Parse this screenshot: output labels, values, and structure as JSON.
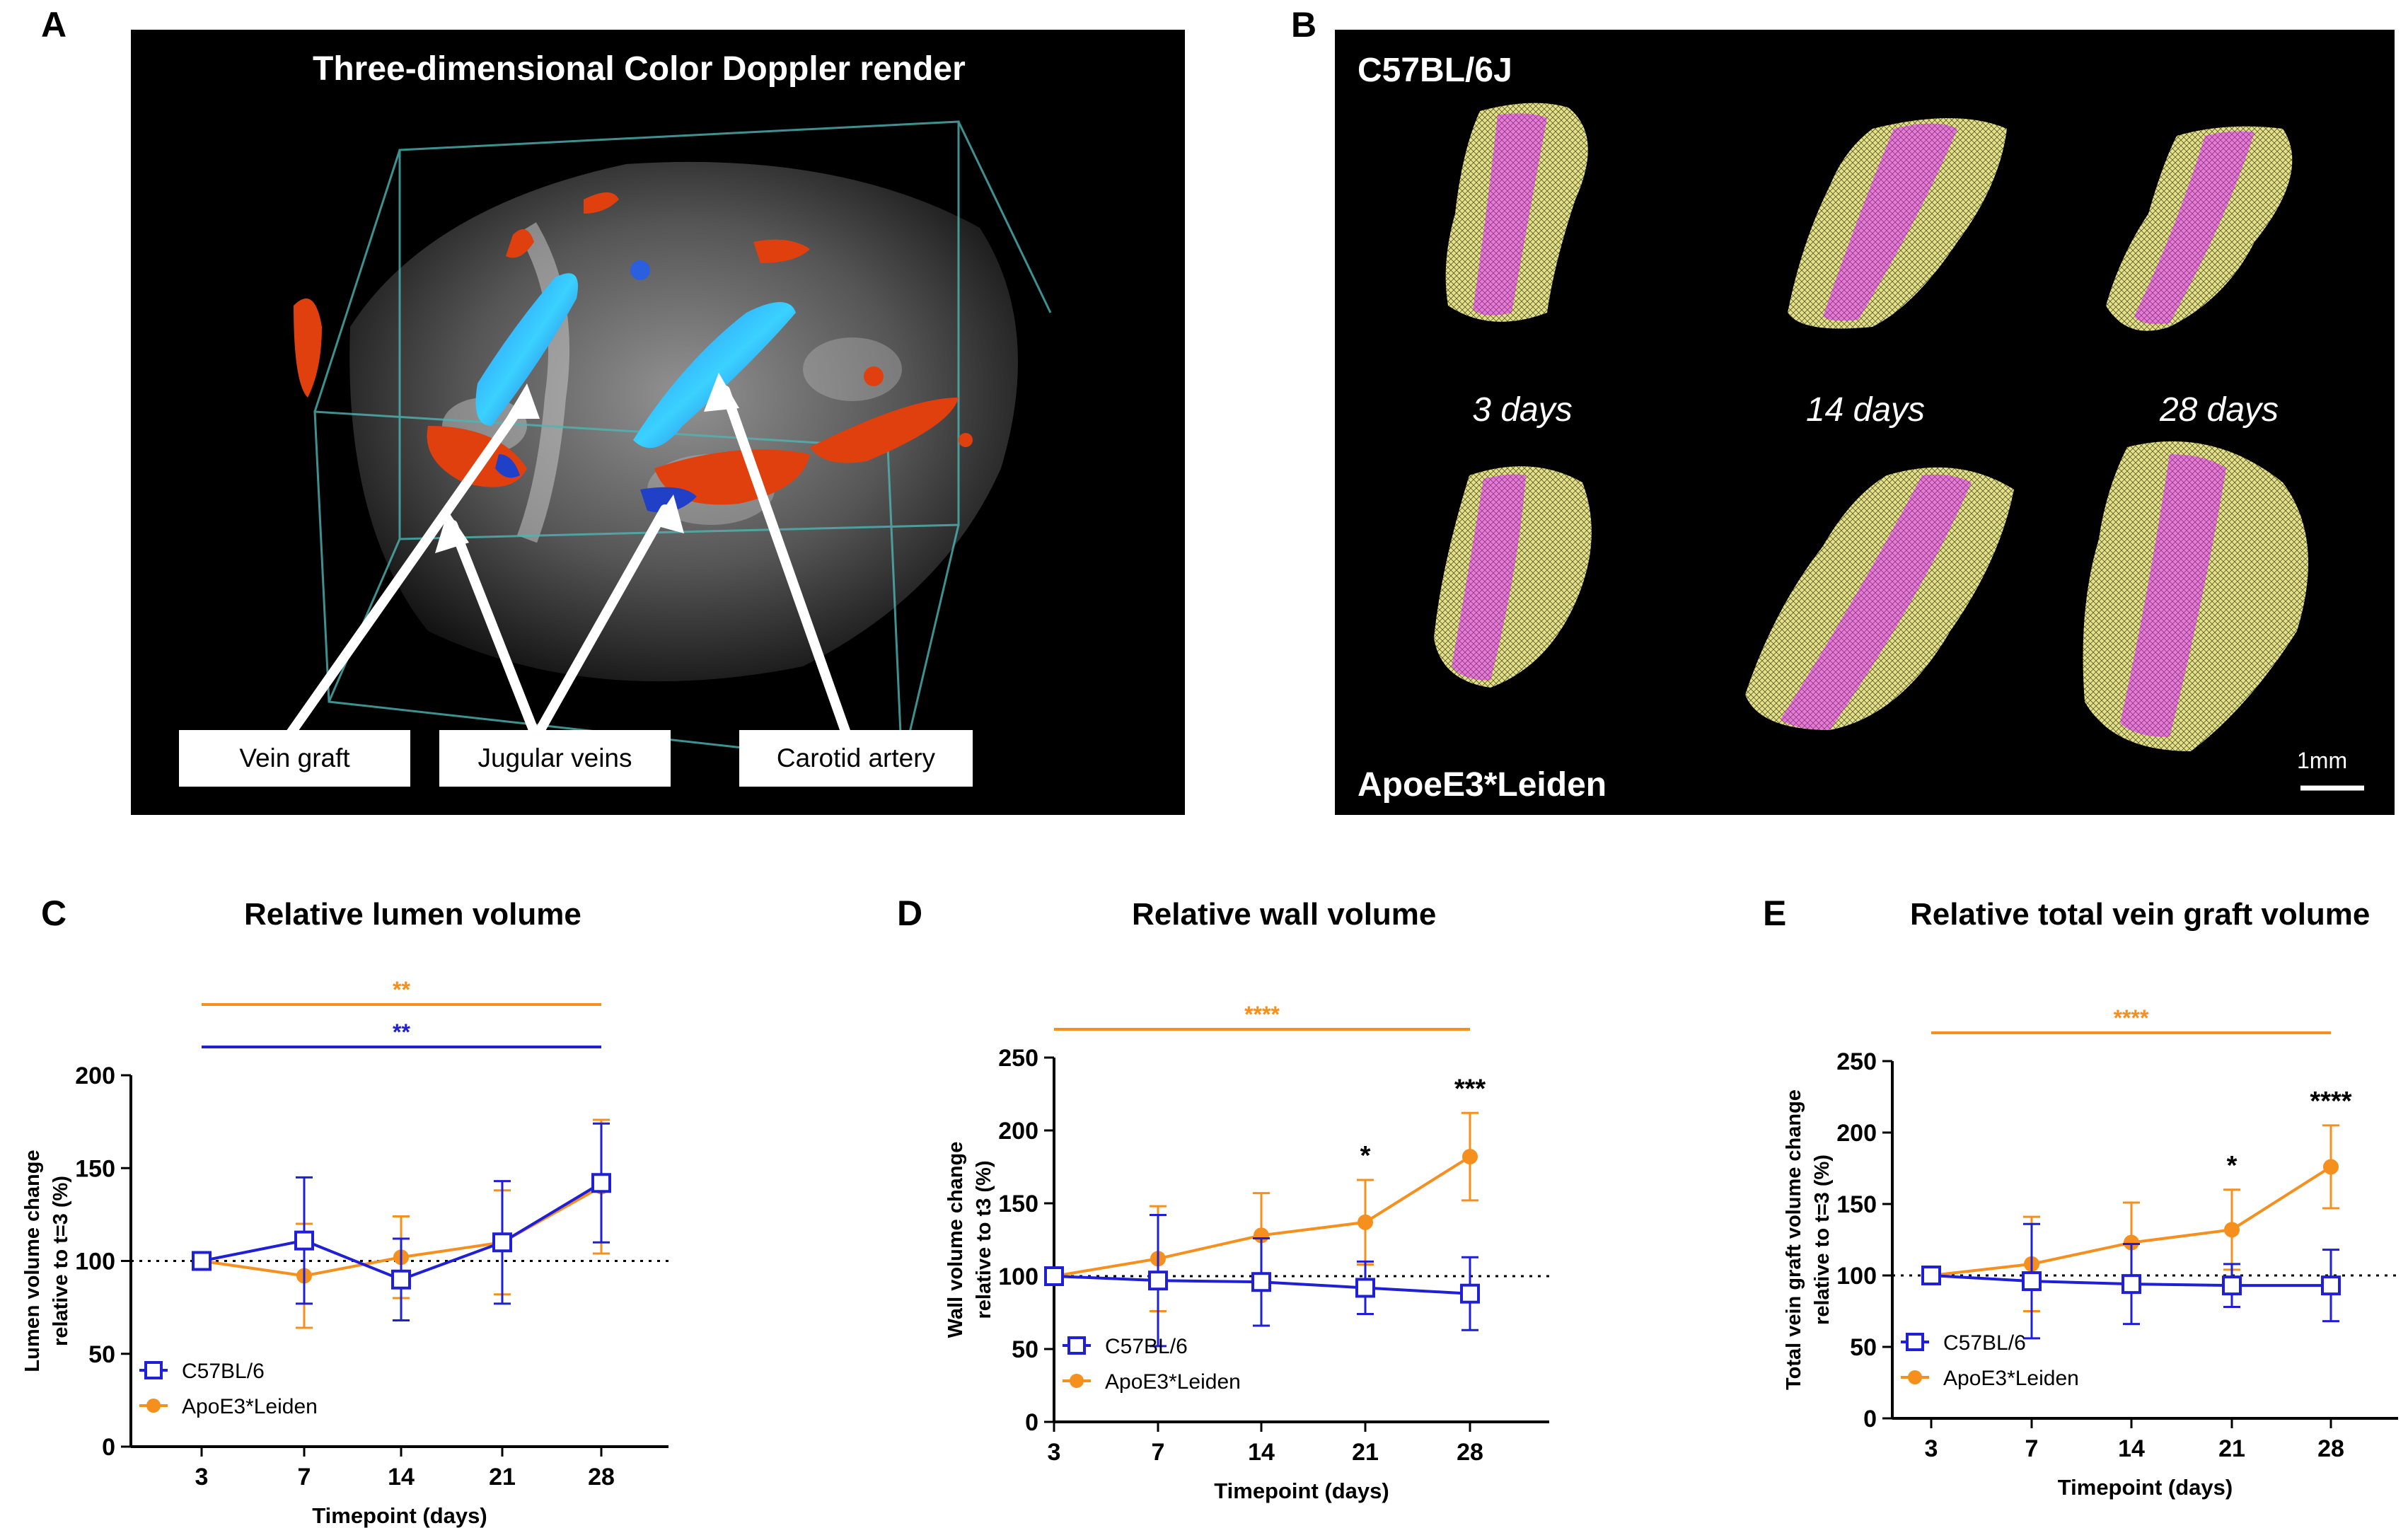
{
  "panel_a": {
    "label": "A",
    "title": "Three-dimensional Color Doppler render",
    "callouts": [
      "Vein graft",
      "Jugular veins",
      "Carotid artery"
    ]
  },
  "panel_b": {
    "label": "B",
    "strain_top": "C57BL/6J",
    "strain_bottom": "ApoeE3*Leiden",
    "days": [
      "3 days",
      "14 days",
      "28 days"
    ],
    "scale": "1mm"
  },
  "colors": {
    "c57": "#1f1fd6",
    "apoe": "#f5901e"
  },
  "chart_data": [
    {
      "panel": "C",
      "type": "line",
      "title": "Relative lumen volume",
      "xlabel": "Timepoint (days)",
      "ylabel_lines": [
        "Lumen volume change",
        "relative to t=3  (%)"
      ],
      "categories": [
        "3",
        "7",
        "14",
        "21",
        "28"
      ],
      "ylim": [
        0,
        200
      ],
      "yticks": [
        0,
        50,
        100,
        150,
        200
      ],
      "reference_line": 100,
      "series": [
        {
          "name": "C57BL/6",
          "values": [
            100,
            111,
            90,
            110,
            142
          ],
          "err": [
            0,
            34,
            22,
            33,
            32
          ]
        },
        {
          "name": "ApoE3*Leiden",
          "values": [
            100,
            92,
            102,
            110,
            140
          ],
          "err": [
            0,
            28,
            22,
            28,
            36
          ]
        }
      ],
      "sig_bars": [
        {
          "text": "**",
          "series": "ApoE3*Leiden",
          "from": "3",
          "to": "28"
        },
        {
          "text": "**",
          "series": "C57BL/6",
          "from": "3",
          "to": "28"
        }
      ],
      "point_annotations": []
    },
    {
      "panel": "D",
      "type": "line",
      "title": "Relative wall volume",
      "xlabel": "Timepoint (days)",
      "ylabel_lines": [
        "Wall volume change",
        "relative to t3 (%)"
      ],
      "categories": [
        "3",
        "7",
        "14",
        "21",
        "28"
      ],
      "ylim": [
        0,
        250
      ],
      "yticks": [
        0,
        50,
        100,
        150,
        200,
        250
      ],
      "reference_line": 100,
      "series": [
        {
          "name": "C57BL/6",
          "values": [
            100,
            97,
            96,
            92,
            88
          ],
          "err": [
            0,
            45,
            30,
            18,
            25
          ]
        },
        {
          "name": "ApoE3*Leiden",
          "values": [
            100,
            112,
            128,
            137,
            182
          ],
          "err": [
            0,
            36,
            29,
            29,
            30
          ]
        }
      ],
      "sig_bars": [
        {
          "text": "****",
          "series": "ApoE3*Leiden",
          "from": "3",
          "to": "28"
        }
      ],
      "point_annotations": [
        {
          "category": "21",
          "text": "*"
        },
        {
          "category": "28",
          "text": "***"
        }
      ]
    },
    {
      "panel": "E",
      "type": "line",
      "title": "Relative total vein graft volume",
      "xlabel": "Timepoint (days)",
      "ylabel_lines": [
        "Total vein graft volume change",
        "relative to t=3 (%)"
      ],
      "categories": [
        "3",
        "7",
        "14",
        "21",
        "28"
      ],
      "ylim": [
        0,
        250
      ],
      "yticks": [
        0,
        50,
        100,
        150,
        200,
        250
      ],
      "reference_line": 100,
      "series": [
        {
          "name": "C57BL/6",
          "values": [
            100,
            96,
            94,
            93,
            93
          ],
          "err": [
            0,
            40,
            28,
            15,
            25
          ]
        },
        {
          "name": "ApoE3*Leiden",
          "values": [
            100,
            108,
            123,
            132,
            176
          ],
          "err": [
            0,
            33,
            28,
            28,
            29
          ]
        }
      ],
      "sig_bars": [
        {
          "text": "****",
          "series": "ApoE3*Leiden",
          "from": "3",
          "to": "28"
        }
      ],
      "point_annotations": [
        {
          "category": "21",
          "text": "*"
        },
        {
          "category": "28",
          "text": "****"
        }
      ]
    }
  ]
}
